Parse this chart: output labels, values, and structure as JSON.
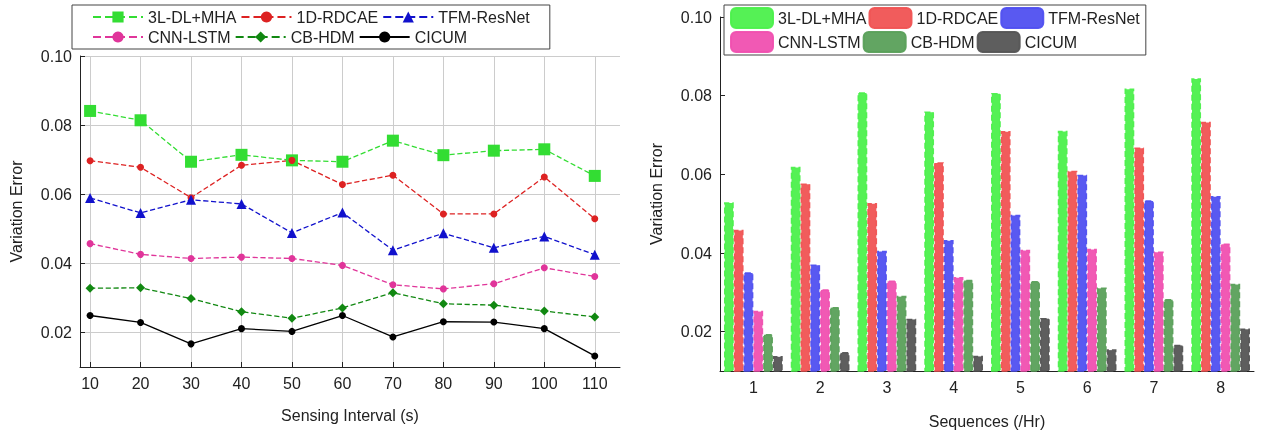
{
  "chart_data": [
    {
      "type": "line",
      "xlabel": "Sensing Interval (s)",
      "ylabel": "Variation Error",
      "x": [
        10,
        20,
        30,
        40,
        50,
        60,
        70,
        80,
        90,
        100,
        110
      ],
      "xlim": [
        8,
        115
      ],
      "xticks": [
        10,
        20,
        30,
        40,
        50,
        60,
        70,
        80,
        90,
        100,
        110
      ],
      "ylim": [
        0.01,
        0.1
      ],
      "yticks": [
        {
          "value": 0.02,
          "label": "0.02"
        },
        {
          "value": 0.04,
          "label": "0.04"
        },
        {
          "value": 0.06,
          "label": "0.06"
        },
        {
          "value": 0.08,
          "label": "0.08"
        },
        {
          "value": 0.1,
          "label": "0.10"
        }
      ],
      "grid": true,
      "legend": "top",
      "series": [
        {
          "name": "3L-DL+MHA",
          "color": "#33dd33",
          "marker": "square",
          "line_style": "dashed",
          "values": [
            0.0841,
            0.0814,
            0.0694,
            0.0714,
            0.0698,
            0.0694,
            0.0755,
            0.0713,
            0.0726,
            0.073,
            0.0653
          ]
        },
        {
          "name": "1D-RDCAE",
          "color": "#dd2222",
          "marker": "circle",
          "line_style": "dashed",
          "values": [
            0.0697,
            0.0678,
            0.059,
            0.0684,
            0.0698,
            0.0628,
            0.0655,
            0.0543,
            0.0543,
            0.065,
            0.0529
          ]
        },
        {
          "name": "TFM-ResNet",
          "color": "#1111cc",
          "marker": "triangle",
          "line_style": "dashed",
          "values": [
            0.0589,
            0.0546,
            0.0584,
            0.0572,
            0.0488,
            0.0547,
            0.0438,
            0.0487,
            0.0445,
            0.0478,
            0.0425
          ]
        },
        {
          "name": "CNN-LSTM",
          "color": "#e0359a",
          "marker": "circle",
          "line_style": "dashed",
          "values": [
            0.0457,
            0.0426,
            0.0414,
            0.0418,
            0.0414,
            0.0394,
            0.0338,
            0.0326,
            0.0341,
            0.0387,
            0.0362
          ]
        },
        {
          "name": "CB-HDM",
          "color": "#118811",
          "marker": "diamond",
          "line_style": "dashed",
          "values": [
            0.0328,
            0.0329,
            0.0298,
            0.026,
            0.0241,
            0.0271,
            0.0315,
            0.0283,
            0.0279,
            0.0262,
            0.0245
          ]
        },
        {
          "name": "CICUM",
          "color": "#000000",
          "marker": "circle",
          "line_style": "solid",
          "values": [
            0.0249,
            0.0229,
            0.0167,
            0.0211,
            0.0203,
            0.0249,
            0.0187,
            0.0231,
            0.023,
            0.0211,
            0.0132
          ]
        }
      ]
    },
    {
      "type": "bar",
      "xlabel": "Sequences (/Hr)",
      "ylabel": "Variation Error",
      "categories": [
        "1",
        "2",
        "3",
        "4",
        "5",
        "6",
        "7",
        "8"
      ],
      "ylim": [
        0.01,
        0.1
      ],
      "yticks": [
        {
          "value": 0.02,
          "label": "0.02"
        },
        {
          "value": 0.04,
          "label": "0.04"
        },
        {
          "value": 0.06,
          "label": "0.06"
        },
        {
          "value": 0.08,
          "label": "0.08"
        },
        {
          "value": 0.1,
          "label": "0.10"
        }
      ],
      "legend": "top",
      "series": [
        {
          "name": "3L-DL+MHA",
          "color": "#4cf04c",
          "values": [
            0.0529,
            0.0619,
            0.0809,
            0.076,
            0.0807,
            0.0711,
            0.0818,
            0.0844
          ]
        },
        {
          "name": "1D-RDCAE",
          "color": "#f05353",
          "values": [
            0.0459,
            0.0577,
            0.0527,
            0.0631,
            0.071,
            0.0609,
            0.0668,
            0.0734
          ]
        },
        {
          "name": "TFM-ResNet",
          "color": "#5050f0",
          "values": [
            0.0351,
            0.0371,
            0.0406,
            0.0433,
            0.0497,
            0.0599,
            0.0534,
            0.0545
          ]
        },
        {
          "name": "CNN-LSTM",
          "color": "#f050b0",
          "values": [
            0.0253,
            0.0308,
            0.033,
            0.0339,
            0.0408,
            0.0411,
            0.0404,
            0.0424
          ]
        },
        {
          "name": "CB-HDM",
          "color": "#5aa05a",
          "values": [
            0.0194,
            0.0263,
            0.0291,
            0.0332,
            0.0329,
            0.0312,
            0.0283,
            0.0322
          ]
        },
        {
          "name": "CICUM",
          "color": "#555555",
          "values": [
            0.0138,
            0.0148,
            0.0233,
            0.0139,
            0.0235,
            0.0155,
            0.0167,
            0.0208
          ]
        }
      ]
    }
  ]
}
